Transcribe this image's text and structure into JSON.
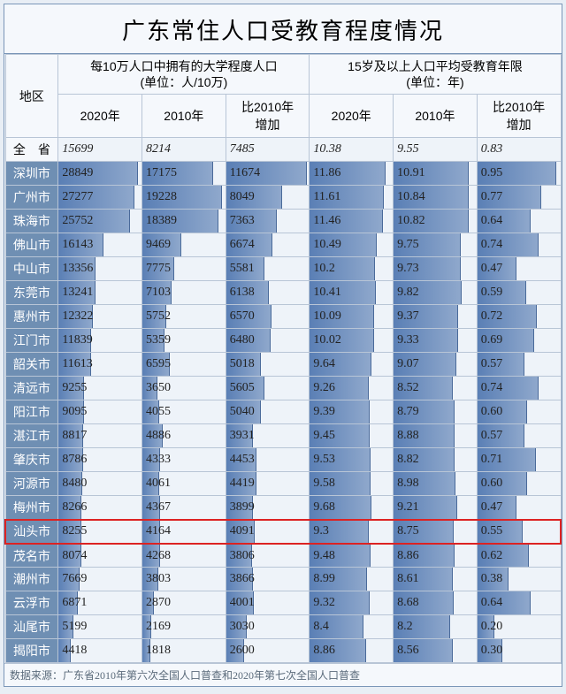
{
  "title": "广东常住人口受教育程度情况",
  "region_header": "地区",
  "group1": {
    "title": "每10万人口中拥有的大学程度人口",
    "unit": "(单位：人/10万)"
  },
  "group2": {
    "title": "15岁及以上人口平均受教育年限",
    "unit": "(单位：年)"
  },
  "sub_headers": [
    "2020年",
    "2010年",
    "比2010年\n增加",
    "2020年",
    "2010年",
    "比2010年\n增加"
  ],
  "max": {
    "c1": 30000,
    "c2": 20000,
    "c3": 12000,
    "c4": 13,
    "c5": 12,
    "c6": 1.0
  },
  "province_row": {
    "region": "全　省",
    "vals": [
      "15699",
      "8214",
      "7485",
      "10.38",
      "9.55",
      "0.83"
    ]
  },
  "highlight_region": "汕头市",
  "rows": [
    {
      "region": "深圳市",
      "vals": [
        "28849",
        "17175",
        "11674",
        "11.86",
        "10.91",
        "0.95"
      ]
    },
    {
      "region": "广州市",
      "vals": [
        "27277",
        "19228",
        "8049",
        "11.61",
        "10.84",
        "0.77"
      ]
    },
    {
      "region": "珠海市",
      "vals": [
        "25752",
        "18389",
        "7363",
        "11.46",
        "10.82",
        "0.64"
      ]
    },
    {
      "region": "佛山市",
      "vals": [
        "16143",
        "9469",
        "6674",
        "10.49",
        "9.75",
        "0.74"
      ]
    },
    {
      "region": "中山市",
      "vals": [
        "13356",
        "7775",
        "5581",
        "10.2",
        "9.73",
        "0.47"
      ]
    },
    {
      "region": "东莞市",
      "vals": [
        "13241",
        "7103",
        "6138",
        "10.41",
        "9.82",
        "0.59"
      ]
    },
    {
      "region": "惠州市",
      "vals": [
        "12322",
        "5752",
        "6570",
        "10.09",
        "9.37",
        "0.72"
      ]
    },
    {
      "region": "江门市",
      "vals": [
        "11839",
        "5359",
        "6480",
        "10.02",
        "9.33",
        "0.69"
      ]
    },
    {
      "region": "韶关市",
      "vals": [
        "11613",
        "6595",
        "5018",
        "9.64",
        "9.07",
        "0.57"
      ]
    },
    {
      "region": "清远市",
      "vals": [
        "9255",
        "3650",
        "5605",
        "9.26",
        "8.52",
        "0.74"
      ]
    },
    {
      "region": "阳江市",
      "vals": [
        "9095",
        "4055",
        "5040",
        "9.39",
        "8.79",
        "0.60"
      ]
    },
    {
      "region": "湛江市",
      "vals": [
        "8817",
        "4886",
        "3931",
        "9.45",
        "8.88",
        "0.57"
      ]
    },
    {
      "region": "肇庆市",
      "vals": [
        "8786",
        "4333",
        "4453",
        "9.53",
        "8.82",
        "0.71"
      ]
    },
    {
      "region": "河源市",
      "vals": [
        "8480",
        "4061",
        "4419",
        "9.58",
        "8.98",
        "0.60"
      ]
    },
    {
      "region": "梅州市",
      "vals": [
        "8266",
        "4367",
        "3899",
        "9.68",
        "9.21",
        "0.47"
      ]
    },
    {
      "region": "汕头市",
      "vals": [
        "8255",
        "4164",
        "4091",
        "9.3",
        "8.75",
        "0.55"
      ]
    },
    {
      "region": "茂名市",
      "vals": [
        "8074",
        "4268",
        "3806",
        "9.48",
        "8.86",
        "0.62"
      ]
    },
    {
      "region": "潮州市",
      "vals": [
        "7669",
        "3803",
        "3866",
        "8.99",
        "8.61",
        "0.38"
      ]
    },
    {
      "region": "云浮市",
      "vals": [
        "6871",
        "2870",
        "4001",
        "9.32",
        "8.68",
        "0.64"
      ]
    },
    {
      "region": "汕尾市",
      "vals": [
        "5199",
        "2169",
        "3030",
        "8.4",
        "8.2",
        "0.20"
      ]
    },
    {
      "region": "揭阳市",
      "vals": [
        "4418",
        "1818",
        "2600",
        "8.86",
        "8.56",
        "0.30"
      ]
    }
  ],
  "footnote": "数据来源：广东省2010年第六次全国人口普查和2020年第七次全国人口普查",
  "colors": {
    "bar_start": "#5a7fb5",
    "bar_end": "#8fa8cc",
    "region_bg": "#6f8fb3",
    "highlight": "#d22",
    "border": "#b8c5d6"
  }
}
